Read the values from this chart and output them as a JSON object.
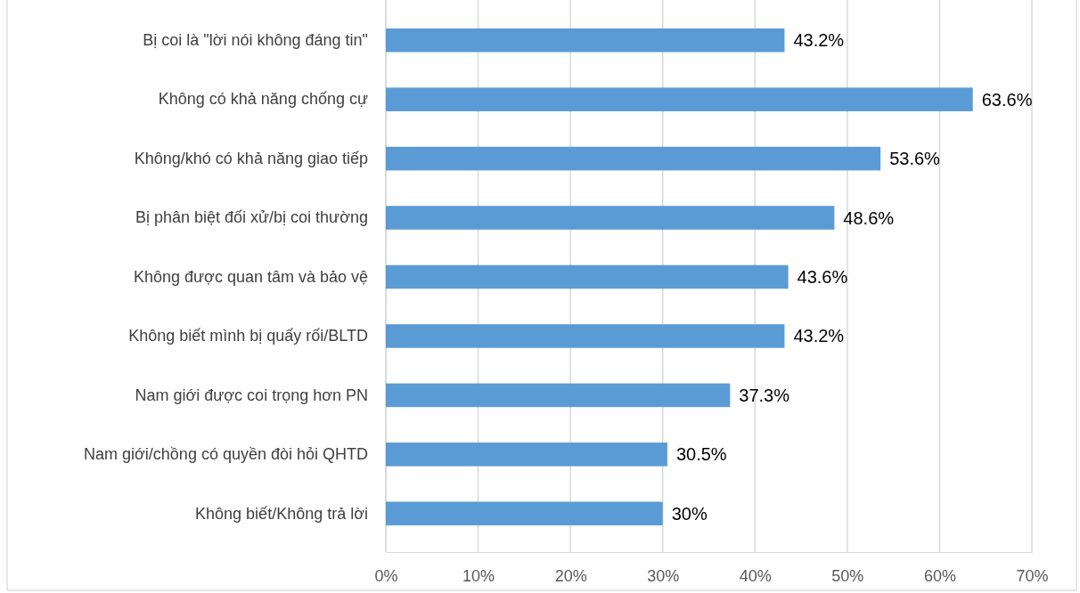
{
  "chart_data": {
    "type": "bar",
    "orientation": "horizontal",
    "categories": [
      "Bị coi là \"lời nói không đáng tin\"",
      "Không có khả năng chống cự",
      "Không/khó có khả năng giao tiếp",
      "Bị phân biệt đối xử/bị coi thường",
      "Không được quan tâm và bảo vệ",
      "Không biết mình bị quấy rối/BLTD",
      "Nam giới được coi trọng hơn PN",
      "Nam giới/chồng có quyền đòi hỏi QHTD",
      "Không biết/Không trả lời"
    ],
    "values": [
      43.2,
      63.6,
      53.6,
      48.6,
      43.6,
      43.2,
      37.3,
      30.5,
      30
    ],
    "value_labels": [
      "43.2%",
      "63.6%",
      "53.6%",
      "48.6%",
      "43.6%",
      "43.2%",
      "37.3%",
      "30.5%",
      "30%"
    ],
    "color": "#5b9bd5",
    "xlim": [
      0,
      70
    ],
    "xticks": [
      {
        "value": 0,
        "label": "0%"
      },
      {
        "value": 10,
        "label": "10%"
      },
      {
        "value": 20,
        "label": "20%"
      },
      {
        "value": 30,
        "label": "30%"
      },
      {
        "value": 40,
        "label": "40%"
      },
      {
        "value": 50,
        "label": "50%"
      },
      {
        "value": 60,
        "label": "60%"
      },
      {
        "value": 70,
        "label": "70%"
      }
    ],
    "grid": "x"
  }
}
